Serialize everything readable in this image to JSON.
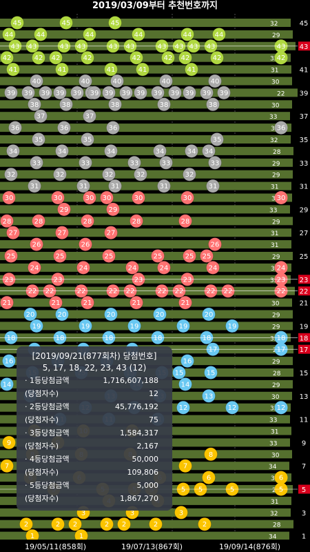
{
  "title": "2019/03/09부터 추천번호까지",
  "colors": {
    "bar": "#55702e",
    "bar_dark": "#2d3b18",
    "ball_1_10": "#fbc400",
    "ball_11_20": "#69c8f2",
    "ball_21_30": "#ff7272",
    "ball_31_40": "#aaaaaa",
    "ball_41_45": "#b0d840",
    "axis_red": "#d8001c"
  },
  "x_labels": [
    "19/05/11(858회)",
    "19/07/13(867회)",
    "19/09/14(876회)"
  ],
  "popup": {
    "header": "[2019/09/21(877회차) 당첨번호]",
    "numbers": "5, 17, 18, 22, 23, 43 (12)",
    "rows": [
      {
        "label": "· 1등당첨금액",
        "value": "1,716,607,188"
      },
      {
        "label": "(당첨자수)",
        "value": "12"
      },
      {
        "label": "· 2등당첨금액",
        "value": "45,776,192"
      },
      {
        "label": "(당첨자수)",
        "value": "75"
      },
      {
        "label": "· 3등당첨금액",
        "value": "1,584,317"
      },
      {
        "label": "(당첨자수)",
        "value": "2,167"
      },
      {
        "label": "· 4등당첨금액",
        "value": "50,000"
      },
      {
        "label": "(당첨자수)",
        "value": "109,806"
      },
      {
        "label": "· 5등당첨금액",
        "value": "5,000"
      },
      {
        "label": "(당첨자수)",
        "value": "1,867,270"
      }
    ]
  },
  "chart_data": {
    "type": "scatter",
    "title": "2019/03/09부터 추천번호까지",
    "y_labels": [
      1,
      3,
      5,
      7,
      9,
      11,
      13,
      15,
      17,
      18,
      19,
      21,
      22,
      23,
      25,
      27,
      29,
      31,
      33,
      35,
      37,
      39,
      41,
      43,
      45
    ],
    "highlighted_numbers": [
      5,
      17,
      18,
      22,
      23,
      43
    ],
    "ylim": [
      1,
      45
    ],
    "rows": [
      {
        "n": 45,
        "last_gap": 32,
        "balls": [
          45,
          45,
          45
        ]
      },
      {
        "n": 44,
        "last_gap": 29,
        "balls": [
          44,
          44,
          44,
          44,
          44,
          44
        ]
      },
      {
        "n": 43,
        "last_gap": 25,
        "balls": [
          43,
          43,
          43,
          43,
          43,
          43,
          43,
          43,
          43,
          43
        ]
      },
      {
        "n": 42,
        "last_gap": 32,
        "balls": [
          42,
          42,
          42,
          42,
          42,
          42,
          42,
          42
        ]
      },
      {
        "n": 41,
        "last_gap": 31,
        "balls": [
          41,
          41,
          41,
          41,
          41
        ]
      },
      {
        "n": 40,
        "last_gap": 30,
        "balls": [
          40,
          40,
          40,
          40,
          40
        ]
      },
      {
        "n": 39,
        "last_gap": 22,
        "balls": [
          39,
          39,
          39,
          39,
          39,
          39,
          39,
          39,
          39,
          39,
          39,
          39,
          39,
          39,
          39
        ]
      },
      {
        "n": 38,
        "last_gap": 30,
        "balls": [
          38,
          38,
          38,
          38,
          38
        ]
      },
      {
        "n": 37,
        "last_gap": 33,
        "balls": [
          37,
          37
        ]
      },
      {
        "n": 36,
        "last_gap": 31,
        "balls": [
          36,
          36,
          36
        ]
      },
      {
        "n": 35,
        "last_gap": 32,
        "balls": [
          35,
          35,
          35
        ]
      },
      {
        "n": 34,
        "last_gap": 28,
        "balls": [
          34,
          34,
          34,
          34,
          34,
          34
        ]
      },
      {
        "n": 33,
        "last_gap": 29,
        "balls": [
          33,
          33,
          33,
          33,
          33
        ]
      },
      {
        "n": 32,
        "last_gap": 29,
        "balls": [
          32,
          32,
          32,
          32,
          32
        ]
      },
      {
        "n": 31,
        "last_gap": 31,
        "balls": [
          31,
          31,
          31,
          31,
          31
        ]
      },
      {
        "n": 30,
        "last_gap": 30,
        "balls": [
          30,
          30,
          30,
          30,
          30,
          30
        ]
      },
      {
        "n": 29,
        "last_gap": 33,
        "balls": [
          29,
          29
        ]
      },
      {
        "n": 28,
        "last_gap": 29,
        "balls": [
          28,
          28,
          28,
          28,
          28
        ]
      },
      {
        "n": 27,
        "last_gap": 31,
        "balls": [
          27,
          27,
          27
        ]
      },
      {
        "n": 26,
        "last_gap": 31,
        "balls": [
          26,
          26,
          26
        ]
      },
      {
        "n": 25,
        "last_gap": 29,
        "balls": [
          25,
          25,
          25,
          25,
          25,
          25
        ]
      },
      {
        "n": 24,
        "last_gap": 31,
        "balls": [
          24,
          24,
          24,
          24,
          24
        ]
      },
      {
        "n": 23,
        "last_gap": 32,
        "balls": [
          23,
          23,
          23,
          23
        ]
      },
      {
        "n": 22,
        "last_gap": 26,
        "balls": [
          22,
          22,
          22,
          22,
          22,
          22,
          22,
          22,
          22
        ]
      },
      {
        "n": 21,
        "last_gap": 30,
        "balls": [
          21,
          21,
          21,
          21,
          21
        ]
      },
      {
        "n": 20,
        "last_gap": 29,
        "balls": [
          20,
          20,
          20,
          20,
          20
        ]
      },
      {
        "n": 19,
        "last_gap": 29,
        "balls": [
          19,
          19,
          19,
          19,
          19
        ]
      },
      {
        "n": 18,
        "last_gap": 32,
        "balls": [
          18,
          18,
          18,
          18,
          18
        ]
      },
      {
        "n": 17,
        "last_gap": 28,
        "balls": [
          17,
          17,
          17,
          17
        ]
      },
      {
        "n": 16,
        "last_gap": 29,
        "balls": [
          16,
          16,
          16,
          16
        ]
      },
      {
        "n": 15,
        "last_gap": 28,
        "balls": [
          15,
          15,
          15,
          15,
          15,
          15
        ]
      },
      {
        "n": 14,
        "last_gap": 29,
        "balls": [
          14,
          14,
          14
        ]
      },
      {
        "n": 13,
        "last_gap": 30,
        "balls": [
          13,
          13,
          13,
          13
        ]
      },
      {
        "n": 12,
        "last_gap": 32,
        "balls": [
          12,
          12,
          12,
          12
        ]
      },
      {
        "n": 11,
        "last_gap": 33,
        "balls": [
          11,
          11,
          11
        ]
      },
      {
        "n": 10,
        "last_gap": 31,
        "balls": [
          10,
          10,
          10
        ]
      },
      {
        "n": 9,
        "last_gap": 33,
        "balls": [
          9,
          9
        ]
      },
      {
        "n": 8,
        "last_gap": 30,
        "balls": [
          8,
          8,
          8,
          8
        ]
      },
      {
        "n": 7,
        "last_gap": 34,
        "balls": [
          7,
          7
        ]
      },
      {
        "n": 6,
        "last_gap": 31,
        "balls": [
          6,
          6,
          6,
          6
        ]
      },
      {
        "n": 5,
        "last_gap": 29,
        "balls": [
          5,
          5,
          5,
          5,
          5,
          5,
          5
        ]
      },
      {
        "n": 4,
        "last_gap": 31,
        "balls": [
          4,
          4
        ]
      },
      {
        "n": 3,
        "last_gap": 32,
        "balls": [
          3,
          3,
          3
        ]
      },
      {
        "n": 2,
        "last_gap": 28,
        "balls": [
          2,
          2,
          2,
          2,
          2,
          2,
          2
        ]
      },
      {
        "n": 1,
        "last_gap": 34,
        "balls": [
          1,
          1
        ]
      }
    ]
  }
}
